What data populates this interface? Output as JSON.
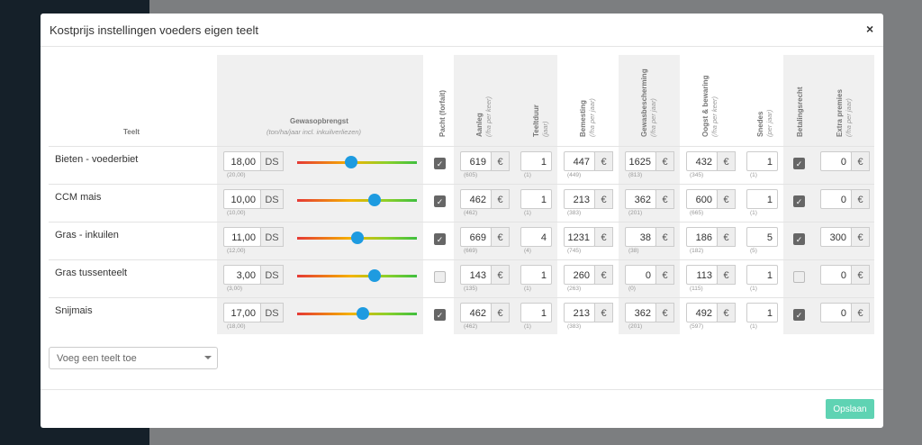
{
  "modal": {
    "title": "Kostprijs instellingen voeders eigen teelt",
    "close": "×"
  },
  "table": {
    "currency": "€",
    "yield_unit": "DS",
    "headers": {
      "teelt": "Teelt",
      "yield": {
        "label": "Gewasopbrengst",
        "sub": "(ton/ha/jaar incl. inkuilverliezen)"
      },
      "pacht": {
        "label": "Pacht (forfait)"
      },
      "aanleg": {
        "label": "Aanleg",
        "sub": "(/ha per keer)"
      },
      "teeltduur": {
        "label": "Teeltduur",
        "sub": "(jaar)"
      },
      "bemesting": {
        "label": "Bemesting",
        "sub": "(/ha per jaar)"
      },
      "gewasbescherming": {
        "label": "Gewasbescherming",
        "sub": "(/ha per jaar)"
      },
      "oogst": {
        "label": "Oogst & bewaring",
        "sub": "(/ha per keer)"
      },
      "snedes": {
        "label": "Snedes",
        "sub": "(per jaar)"
      },
      "betalingsrecht": {
        "label": "Betalingsrecht"
      },
      "premies": {
        "label": "Extra premies",
        "sub": "(/ha per jaar)"
      }
    },
    "rows": [
      {
        "name": "Bieten - voederbiet",
        "yield": {
          "value": "18,00",
          "default": "(20,00)"
        },
        "slider": 0.45,
        "pacht": true,
        "aanleg": {
          "value": "619",
          "default": "(605)"
        },
        "teeltduur": {
          "value": "1",
          "default": "(1)"
        },
        "bemesting": {
          "value": "447",
          "default": "(449)"
        },
        "gewasbescherming": {
          "value": "1625",
          "default": "(813)"
        },
        "oogst": {
          "value": "432",
          "default": "(345)"
        },
        "snedes": {
          "value": "1",
          "default": "(1)"
        },
        "betalingsrecht": true,
        "premies": {
          "value": "0"
        }
      },
      {
        "name": "CCM mais",
        "yield": {
          "value": "10,00",
          "default": "(10,00)"
        },
        "slider": 0.65,
        "pacht": true,
        "aanleg": {
          "value": "462",
          "default": "(462)"
        },
        "teeltduur": {
          "value": "1",
          "default": "(1)"
        },
        "bemesting": {
          "value": "213",
          "default": "(383)"
        },
        "gewasbescherming": {
          "value": "362",
          "default": "(201)"
        },
        "oogst": {
          "value": "600",
          "default": "(665)"
        },
        "snedes": {
          "value": "1",
          "default": "(1)"
        },
        "betalingsrecht": true,
        "premies": {
          "value": "0"
        }
      },
      {
        "name": "Gras - inkuilen",
        "yield": {
          "value": "11,00",
          "default": "(12,00)"
        },
        "slider": 0.5,
        "pacht": true,
        "aanleg": {
          "value": "669",
          "default": "(669)"
        },
        "teeltduur": {
          "value": "4",
          "default": "(4)"
        },
        "bemesting": {
          "value": "1231",
          "default": "(745)"
        },
        "gewasbescherming": {
          "value": "38",
          "default": "(38)"
        },
        "oogst": {
          "value": "186",
          "default": "(182)"
        },
        "snedes": {
          "value": "5",
          "default": "(5)"
        },
        "betalingsrecht": true,
        "premies": {
          "value": "300"
        }
      },
      {
        "name": "Gras tussenteelt",
        "yield": {
          "value": "3,00",
          "default": "(3,00)"
        },
        "slider": 0.65,
        "pacht": false,
        "aanleg": {
          "value": "143",
          "default": "(135)"
        },
        "teeltduur": {
          "value": "1",
          "default": "(1)"
        },
        "bemesting": {
          "value": "260",
          "default": "(263)"
        },
        "gewasbescherming": {
          "value": "0",
          "default": "(0)"
        },
        "oogst": {
          "value": "113",
          "default": "(115)"
        },
        "snedes": {
          "value": "1",
          "default": "(1)"
        },
        "betalingsrecht": false,
        "premies": {
          "value": "0"
        }
      },
      {
        "name": "Snijmais",
        "yield": {
          "value": "17,00",
          "default": "(18,00)"
        },
        "slider": 0.55,
        "pacht": true,
        "aanleg": {
          "value": "462",
          "default": "(462)"
        },
        "teeltduur": {
          "value": "1",
          "default": "(1)"
        },
        "bemesting": {
          "value": "213",
          "default": "(383)"
        },
        "gewasbescherming": {
          "value": "362",
          "default": "(201)"
        },
        "oogst": {
          "value": "492",
          "default": "(597)"
        },
        "snedes": {
          "value": "1",
          "default": "(1)"
        },
        "betalingsrecht": true,
        "premies": {
          "value": "0"
        }
      }
    ]
  },
  "add_select": "Voeg een teelt toe",
  "save_button": "Opslaan"
}
